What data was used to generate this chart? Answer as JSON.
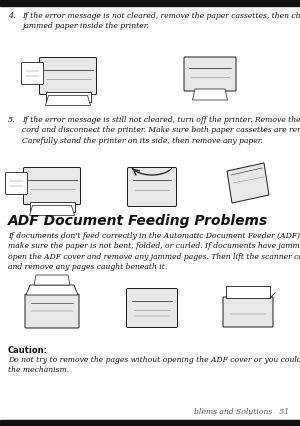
{
  "background_color": "#ffffff",
  "page_bg": "#f8f8f8",
  "border_color": "#222222",
  "text_color": "#111111",
  "gray_text": "#444444",
  "footer_text": "blems and Solutions   51",
  "footer_color": "#555555",
  "section_title": "ADF Document Feeding Problems",
  "item4_num": "4.",
  "item4_text": "If the error message is not cleared, remove the paper cassettes, then check for\njammed paper inside the printer.",
  "item5_num": "5.",
  "item5_text": "If the error message is still not cleared, turn off the printer. Remove the power\ncord and disconnect the printer. Make sure both paper cassettes are removed.\nCarefully stand the printer on its side, then remove any paper.",
  "adf_body": "If documents don't feed correctly in the Automatic Document Feeder (ADF),\nmake sure the paper is not bent, folded, or curled. If documents have jammed,\nopen the ADF cover and remove any jammed pages. Then lift the scanner cover\nand remove any pages caught beneath it.",
  "caution_label": "Caution:",
  "caution_text": "Do not try to remove the pages without opening the ADF cover or you could damage\nthe mechanism.",
  "ink_color": "#1a1a1a",
  "ink_light": "#888888",
  "ink_fill": "#e8e8e8",
  "top_bar_color": "#111111"
}
